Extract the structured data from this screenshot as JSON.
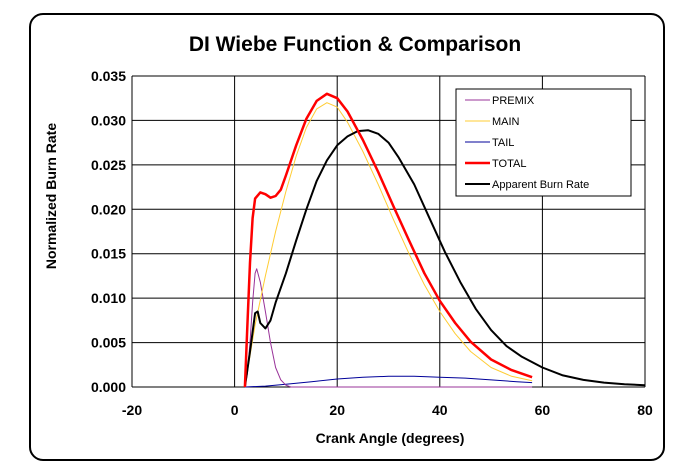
{
  "chart_data": {
    "type": "line",
    "title": "DI Wiebe Function & Comparison",
    "xlabel": "Crank Angle (degrees)",
    "ylabel": "Normalized Burn Rate",
    "xlim": [
      -20,
      80
    ],
    "ylim": [
      0,
      0.035
    ],
    "xticks": [
      -20,
      0,
      20,
      40,
      60,
      80
    ],
    "xtick_labels": [
      "-20",
      "0",
      "20",
      "40",
      "60",
      "80"
    ],
    "yticks": [
      0,
      0.005,
      0.01,
      0.015,
      0.02,
      0.025,
      0.03,
      0.035
    ],
    "ytick_labels": [
      "0.000",
      "0.005",
      "0.010",
      "0.015",
      "0.020",
      "0.025",
      "0.030",
      "0.035"
    ],
    "grid": true,
    "legend_position": "top-right",
    "series": [
      {
        "name": "PREMIX",
        "color": "#993399",
        "width": 1,
        "points": [
          [
            2,
            0
          ],
          [
            2.5,
            0.0015
          ],
          [
            3,
            0.005
          ],
          [
            3.5,
            0.0095
          ],
          [
            4,
            0.0128
          ],
          [
            4.3,
            0.0133
          ],
          [
            5,
            0.0118
          ],
          [
            6,
            0.0085
          ],
          [
            7,
            0.005
          ],
          [
            8,
            0.0022
          ],
          [
            9,
            0.0008
          ],
          [
            10,
            0.0002
          ],
          [
            11,
            0
          ],
          [
            20,
            0
          ],
          [
            40,
            0
          ],
          [
            58,
            0
          ]
        ]
      },
      {
        "name": "MAIN",
        "color": "#ffcc33",
        "width": 1,
        "points": [
          [
            2,
            0
          ],
          [
            3,
            0.0035
          ],
          [
            4,
            0.007
          ],
          [
            6,
            0.0125
          ],
          [
            8,
            0.0175
          ],
          [
            10,
            0.022
          ],
          [
            12,
            0.026
          ],
          [
            14,
            0.0292
          ],
          [
            16,
            0.0313
          ],
          [
            18,
            0.032
          ],
          [
            20,
            0.0315
          ],
          [
            22,
            0.0298
          ],
          [
            25,
            0.0265
          ],
          [
            28,
            0.0228
          ],
          [
            31,
            0.0188
          ],
          [
            34,
            0.015
          ],
          [
            37,
            0.0115
          ],
          [
            40,
            0.0085
          ],
          [
            43,
            0.006
          ],
          [
            46,
            0.004
          ],
          [
            50,
            0.0022
          ],
          [
            54,
            0.0012
          ],
          [
            58,
            0.0007
          ]
        ]
      },
      {
        "name": "TAIL",
        "color": "#000099",
        "width": 1,
        "points": [
          [
            2,
            0
          ],
          [
            6,
            0.0001
          ],
          [
            10,
            0.0003
          ],
          [
            15,
            0.0006
          ],
          [
            20,
            0.0009
          ],
          [
            25,
            0.0011
          ],
          [
            30,
            0.0012
          ],
          [
            35,
            0.0012
          ],
          [
            40,
            0.0011
          ],
          [
            45,
            0.001
          ],
          [
            50,
            0.0008
          ],
          [
            55,
            0.0006
          ],
          [
            58,
            0.0005
          ]
        ]
      },
      {
        "name": "TOTAL",
        "color": "#ff0000",
        "width": 2.5,
        "points": [
          [
            2,
            0
          ],
          [
            2.5,
            0.007
          ],
          [
            3,
            0.014
          ],
          [
            3.5,
            0.019
          ],
          [
            4,
            0.0212
          ],
          [
            5,
            0.0219
          ],
          [
            6,
            0.0217
          ],
          [
            7,
            0.0213
          ],
          [
            8,
            0.0215
          ],
          [
            9,
            0.0222
          ],
          [
            10,
            0.0238
          ],
          [
            12,
            0.0272
          ],
          [
            14,
            0.0302
          ],
          [
            16,
            0.0322
          ],
          [
            18,
            0.033
          ],
          [
            20,
            0.0325
          ],
          [
            22,
            0.031
          ],
          [
            25,
            0.0278
          ],
          [
            28,
            0.0242
          ],
          [
            31,
            0.0203
          ],
          [
            34,
            0.0165
          ],
          [
            37,
            0.0128
          ],
          [
            40,
            0.0097
          ],
          [
            43,
            0.0072
          ],
          [
            46,
            0.0051
          ],
          [
            50,
            0.0031
          ],
          [
            54,
            0.0019
          ],
          [
            58,
            0.0011
          ]
        ]
      },
      {
        "name": "Apparent Burn Rate",
        "color": "#000000",
        "width": 2,
        "points": [
          [
            2,
            0
          ],
          [
            3,
            0.004
          ],
          [
            4,
            0.0083
          ],
          [
            4.5,
            0.0085
          ],
          [
            5,
            0.0072
          ],
          [
            6,
            0.0066
          ],
          [
            7,
            0.0075
          ],
          [
            8,
            0.0095
          ],
          [
            10,
            0.0128
          ],
          [
            12,
            0.0165
          ],
          [
            14,
            0.02
          ],
          [
            16,
            0.0232
          ],
          [
            18,
            0.0255
          ],
          [
            20,
            0.0272
          ],
          [
            22,
            0.0282
          ],
          [
            24,
            0.0288
          ],
          [
            26,
            0.0289
          ],
          [
            28,
            0.0285
          ],
          [
            30,
            0.0275
          ],
          [
            32,
            0.0258
          ],
          [
            35,
            0.0228
          ],
          [
            38,
            0.019
          ],
          [
            41,
            0.0152
          ],
          [
            44,
            0.0118
          ],
          [
            47,
            0.0088
          ],
          [
            50,
            0.0064
          ],
          [
            53,
            0.0046
          ],
          [
            56,
            0.0034
          ],
          [
            60,
            0.0022
          ],
          [
            64,
            0.0013
          ],
          [
            68,
            0.0008
          ],
          [
            72,
            0.0005
          ],
          [
            76,
            0.0003
          ],
          [
            80,
            0.0002
          ]
        ]
      }
    ]
  }
}
